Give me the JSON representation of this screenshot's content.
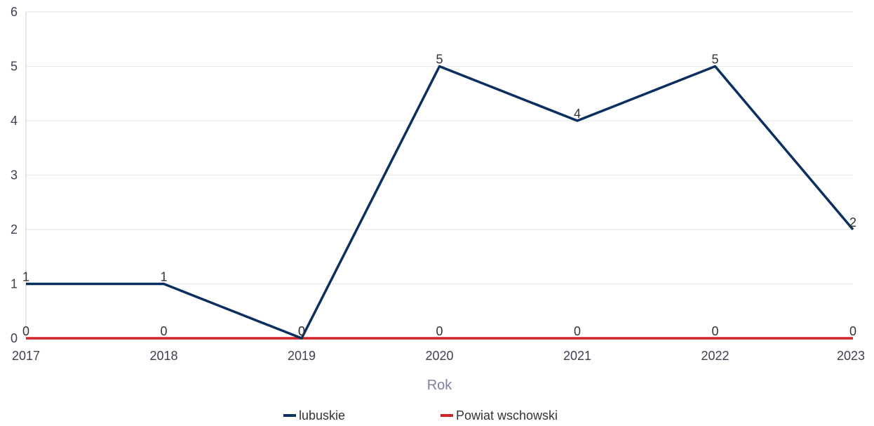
{
  "chart_data": {
    "type": "line",
    "title": "",
    "xlabel": "Rok",
    "ylabel": "",
    "x": [
      "2017",
      "2018",
      "2019",
      "2020",
      "2021",
      "2022",
      "2023"
    ],
    "ylim": [
      0,
      6
    ],
    "yticks": [
      0,
      1,
      2,
      3,
      4,
      5,
      6
    ],
    "grid": true,
    "legend_position": "bottom",
    "series": [
      {
        "name": "lubuskie",
        "color": "#0b2f5e",
        "values": [
          1,
          1,
          0,
          5,
          4,
          5,
          2
        ]
      },
      {
        "name": "Powiat wschowski",
        "color": "#d2232a",
        "values": [
          0,
          0,
          0,
          0,
          0,
          0,
          0
        ]
      }
    ]
  }
}
